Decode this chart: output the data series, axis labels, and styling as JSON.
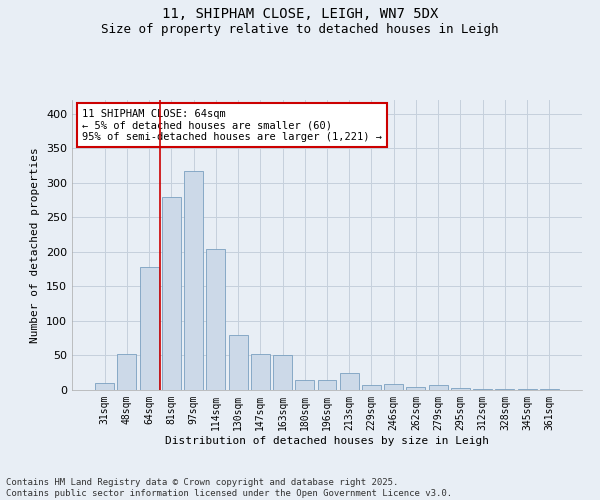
{
  "title1": "11, SHIPHAM CLOSE, LEIGH, WN7 5DX",
  "title2": "Size of property relative to detached houses in Leigh",
  "xlabel": "Distribution of detached houses by size in Leigh",
  "ylabel": "Number of detached properties",
  "categories": [
    "31sqm",
    "48sqm",
    "64sqm",
    "81sqm",
    "97sqm",
    "114sqm",
    "130sqm",
    "147sqm",
    "163sqm",
    "180sqm",
    "196sqm",
    "213sqm",
    "229sqm",
    "246sqm",
    "262sqm",
    "279sqm",
    "295sqm",
    "312sqm",
    "328sqm",
    "345sqm",
    "361sqm"
  ],
  "values": [
    10,
    52,
    178,
    280,
    317,
    204,
    80,
    52,
    50,
    15,
    14,
    25,
    7,
    8,
    5,
    7,
    3,
    2,
    1,
    1,
    1
  ],
  "bar_color": "#ccd9e8",
  "bar_edge_color": "#7aa0c0",
  "vline_color": "#cc0000",
  "vline_index": 2.5,
  "annotation_text": "11 SHIPHAM CLOSE: 64sqm\n← 5% of detached houses are smaller (60)\n95% of semi-detached houses are larger (1,221) →",
  "annotation_box_color": "#ffffff",
  "annotation_box_edge": "#cc0000",
  "grid_color": "#c5d0dc",
  "background_color": "#e8eef5",
  "ylim_max": 420,
  "footer": "Contains HM Land Registry data © Crown copyright and database right 2025.\nContains public sector information licensed under the Open Government Licence v3.0."
}
